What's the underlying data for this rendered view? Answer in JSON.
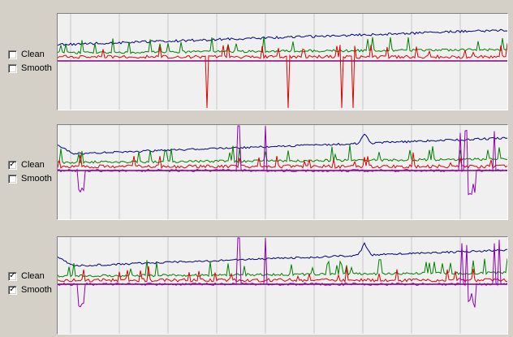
{
  "colors": {
    "window_bg": "#d4d0c8",
    "plot_bg": "#f0f0f0",
    "grid": "#c8c8c8",
    "baseline": "#800080",
    "series_blue": "#000080",
    "series_green": "#008000",
    "series_red": "#e00000",
    "series_purple": "#9000b0"
  },
  "panels": [
    {
      "clean_label": "Clean",
      "clean_checked": false,
      "smooth_label": "Smooth",
      "smooth_checked": false
    },
    {
      "clean_label": "Clean",
      "clean_checked": true,
      "smooth_label": "Smooth",
      "smooth_checked": false
    },
    {
      "clean_label": "Clean",
      "clean_checked": true,
      "smooth_label": "Smooth",
      "smooth_checked": true
    }
  ],
  "check_glyph": "✓"
}
